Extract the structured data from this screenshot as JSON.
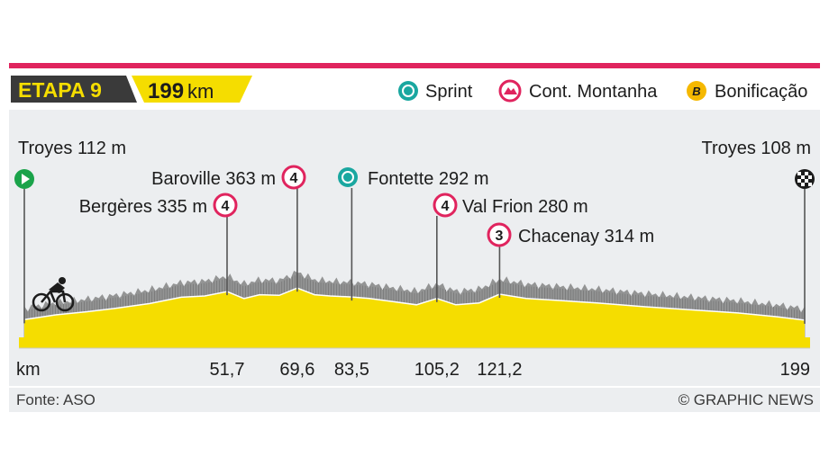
{
  "header": {
    "stage_label": "ETAPA 9",
    "distance_number": "199",
    "distance_unit": "km"
  },
  "legend": [
    {
      "icon": "sprint-icon",
      "label": "Sprint",
      "color": "#1aa7a0"
    },
    {
      "icon": "mountain-icon",
      "label": "Cont. Montanha",
      "color": "#e0245e"
    },
    {
      "icon": "bonus-icon",
      "label": "Bonificação",
      "color": "#f5b800",
      "glyph": "B"
    }
  ],
  "footer": {
    "source": "Fonte: ASO",
    "credit": "© GRAPHIC NEWS"
  },
  "colors": {
    "accent": "#e0245e",
    "profile_fill": "#f5dd00",
    "terrain": "#8a8a8a",
    "header_yellow": "#f5dd00",
    "header_dark": "#3a3a3a",
    "panel_bg": "#eceef0"
  },
  "chart_data": {
    "type": "area",
    "title": "ETAPA 9",
    "x_unit": "km",
    "x_range": [
      0,
      199
    ],
    "tick_labels": [
      {
        "km": 0,
        "label": "km"
      },
      {
        "km": 51.7,
        "label": "51,7"
      },
      {
        "km": 69.6,
        "label": "69,6"
      },
      {
        "km": 83.5,
        "label": "83,5"
      },
      {
        "km": 105.2,
        "label": "105,2"
      },
      {
        "km": 121.2,
        "label": "121,2"
      },
      {
        "km": 199,
        "label": "199"
      }
    ],
    "profile": {
      "km": [
        0,
        8,
        16,
        24,
        32,
        40,
        46,
        51.7,
        56,
        60,
        65,
        69.6,
        74,
        78,
        83.5,
        88,
        94,
        100,
        105.2,
        110,
        116,
        121.2,
        128,
        136,
        146,
        158,
        170,
        182,
        192,
        199
      ],
      "elevation_m": [
        112,
        150,
        175,
        205,
        240,
        290,
        300,
        335,
        280,
        310,
        305,
        363,
        310,
        300,
        292,
        280,
        255,
        230,
        280,
        230,
        245,
        314,
        280,
        265,
        245,
        215,
        190,
        165,
        135,
        108
      ]
    },
    "points": [
      {
        "km": 0,
        "name": "Troyes",
        "elev": "112 m",
        "type": "start",
        "label": "Troyes 112 m"
      },
      {
        "km": 51.7,
        "name": "Bergères",
        "elev": "335 m",
        "type": "climb",
        "cat": "4",
        "label": "Bergères 335 m"
      },
      {
        "km": 69.6,
        "name": "Baroville",
        "elev": "363 m",
        "type": "climb",
        "cat": "4",
        "label": "Baroville 363 m"
      },
      {
        "km": 83.5,
        "name": "Fontette",
        "elev": "292 m",
        "type": "sprint",
        "label": "Fontette 292 m"
      },
      {
        "km": 105.2,
        "name": "Val Frion",
        "elev": "280 m",
        "type": "climb",
        "cat": "4",
        "label": "Val Frion 280 m"
      },
      {
        "km": 121.2,
        "name": "Chacenay",
        "elev": "314 m",
        "type": "climb",
        "cat": "3",
        "label": "Chacenay 314 m"
      },
      {
        "km": 199,
        "name": "Troyes",
        "elev": "108 m",
        "type": "finish",
        "label": "Troyes 108 m"
      }
    ]
  }
}
